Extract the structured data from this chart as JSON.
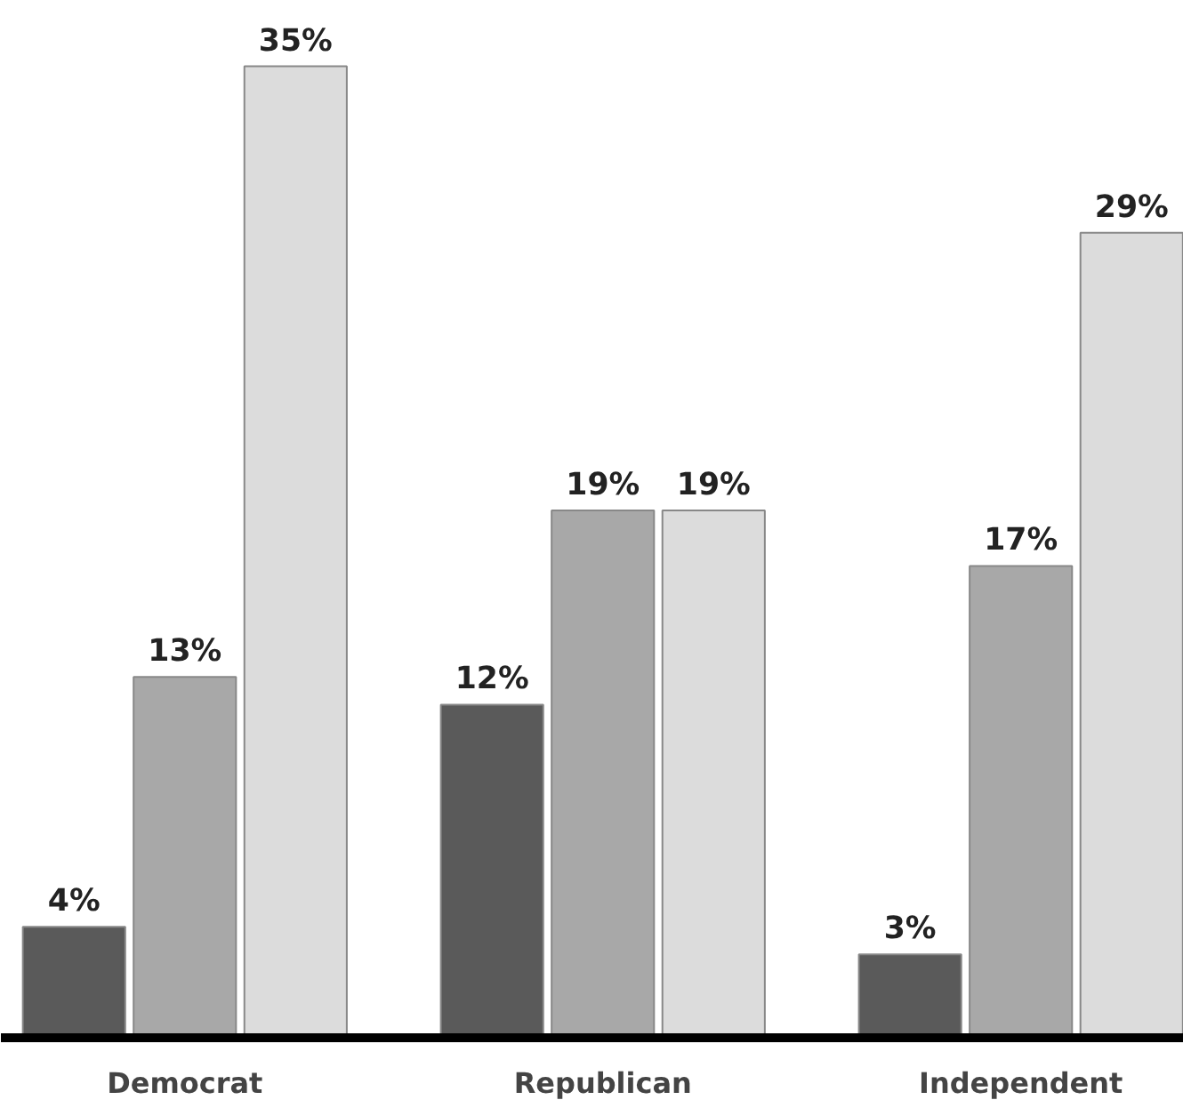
{
  "chart_data": {
    "type": "bar",
    "categories": [
      "Democrat",
      "Republican",
      "Independent"
    ],
    "series": [
      {
        "color": "#5a5a5a",
        "values": [
          4,
          12,
          3
        ],
        "value_labels": [
          "4%",
          "12%",
          "3%"
        ]
      },
      {
        "color": "#a8a8a8",
        "values": [
          13,
          19,
          17
        ],
        "value_labels": [
          "13%",
          "19%",
          "17%"
        ]
      },
      {
        "color": "#dcdcdc",
        "values": [
          35,
          19,
          29
        ],
        "value_labels": [
          "35%",
          "19%",
          "29%"
        ]
      }
    ]
  }
}
